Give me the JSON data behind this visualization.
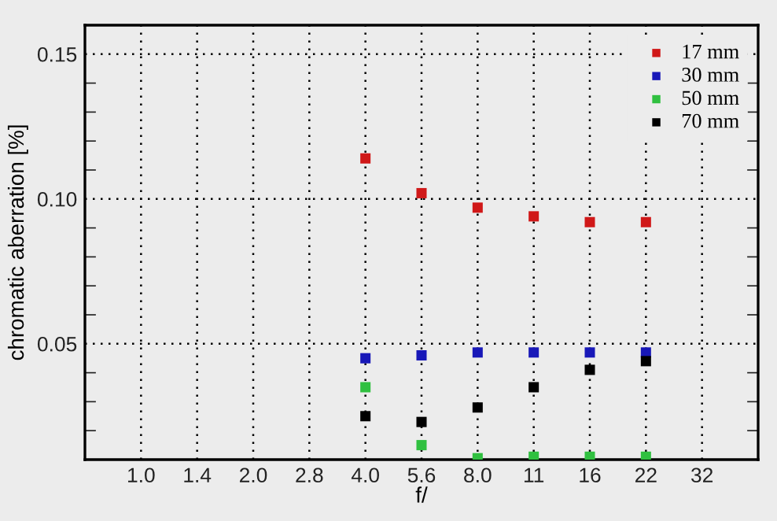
{
  "chart_data": {
    "type": "scatter",
    "xlabel": "f/",
    "ylabel": "chromatic aberration [%]",
    "categories": [
      "1.0",
      "1.4",
      "2.0",
      "2.8",
      "4.0",
      "5.6",
      "8.0",
      "11",
      "16",
      "22",
      "32"
    ],
    "series": [
      {
        "name": "17 mm",
        "color": "#d01818",
        "values": [
          null,
          null,
          null,
          null,
          0.114,
          0.102,
          0.097,
          0.094,
          0.092,
          0.092,
          null
        ]
      },
      {
        "name": "30 mm",
        "color": "#1818b8",
        "values": [
          null,
          null,
          null,
          null,
          0.045,
          0.046,
          0.047,
          0.047,
          0.047,
          0.047,
          null
        ]
      },
      {
        "name": "50 mm",
        "color": "#30c040",
        "values": [
          null,
          null,
          null,
          null,
          0.035,
          0.015,
          0.0105,
          0.011,
          0.011,
          0.011,
          null
        ]
      },
      {
        "name": "70 mm",
        "color": "#000000",
        "values": [
          null,
          null,
          null,
          null,
          0.025,
          0.023,
          0.028,
          0.035,
          0.041,
          0.044,
          null
        ]
      }
    ],
    "ylim": [
      0.01,
      0.16
    ],
    "yticks": [
      0.05,
      {
        "value": 0.1,
        "label": "0.10"
      },
      0.15
    ],
    "marker": "square",
    "grid": true,
    "legend": "top right"
  }
}
